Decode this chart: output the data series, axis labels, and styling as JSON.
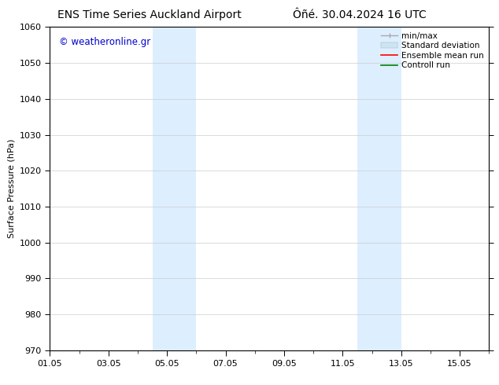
{
  "title_left": "ENS Time Series Auckland Airport",
  "title_right": "Ôñé. 30.04.2024 16 UTC",
  "ylabel": "Surface Pressure (hPa)",
  "ylim": [
    970,
    1060
  ],
  "yticks": [
    970,
    980,
    990,
    1000,
    1010,
    1020,
    1030,
    1040,
    1050,
    1060
  ],
  "xtick_labels": [
    "01.05",
    "03.05",
    "05.05",
    "07.05",
    "09.05",
    "11.05",
    "13.05",
    "15.05"
  ],
  "xtick_positions": [
    0,
    2,
    4,
    6,
    8,
    10,
    12,
    14
  ],
  "xlim": [
    0,
    15
  ],
  "shaded_bands": [
    {
      "x_start": 3.5,
      "x_end": 5.0
    },
    {
      "x_start": 10.5,
      "x_end": 12.0
    }
  ],
  "shaded_color": "#ddeeff",
  "watermark_text": "© weatheronline.gr",
  "watermark_color": "#0000cc",
  "legend_labels": [
    "min/max",
    "Standard deviation",
    "Ensemble mean run",
    "Controll run"
  ],
  "bg_color": "#ffffff",
  "grid_color": "#cccccc",
  "tick_label_fontsize": 8,
  "axis_label_fontsize": 8,
  "title_fontsize": 10,
  "legend_fontsize": 7.5
}
